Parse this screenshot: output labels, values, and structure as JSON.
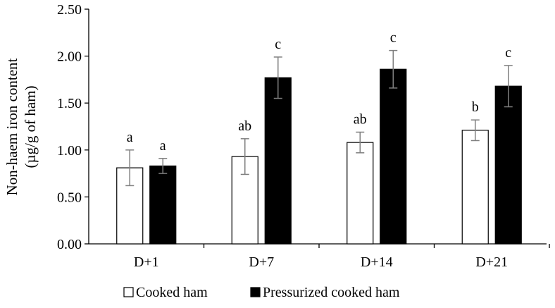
{
  "chart_data": {
    "type": "bar",
    "title": "",
    "xlabel": "",
    "ylabel_line1": "Non-haem iron content",
    "ylabel_line2": "(µg/g of ham)",
    "categories": [
      "D+1",
      "D+7",
      "D+14",
      "D+21"
    ],
    "ylim": [
      0,
      2.5
    ],
    "yticks": [
      "0.00",
      "0.50",
      "1.00",
      "1.50",
      "2.00",
      "2.50"
    ],
    "grid": false,
    "legend_position": "bottom",
    "series": [
      {
        "name": "Cooked ham",
        "fill": "#ffffff",
        "stroke": "#000000",
        "values": [
          0.81,
          0.93,
          1.08,
          1.21
        ],
        "errors": [
          0.19,
          0.19,
          0.11,
          0.11
        ],
        "letters": [
          "a",
          "ab",
          "ab",
          "b"
        ]
      },
      {
        "name": "Pressurized cooked ham",
        "fill": "#000000",
        "stroke": "#000000",
        "values": [
          0.83,
          1.77,
          1.86,
          1.68
        ],
        "errors": [
          0.08,
          0.22,
          0.2,
          0.22
        ],
        "letters": [
          "a",
          "c",
          "c",
          "c"
        ]
      }
    ],
    "error_bar_color": "#7f7f7f"
  }
}
